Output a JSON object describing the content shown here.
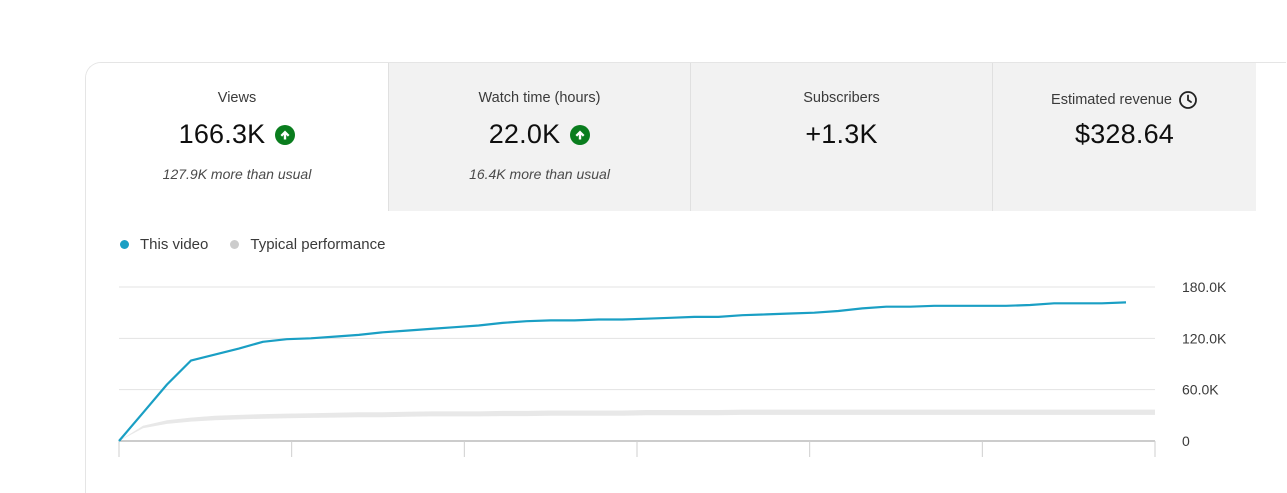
{
  "tabs": [
    {
      "label": "Views",
      "value": "166.3K",
      "sub": "127.9K more than usual",
      "trend": "up"
    },
    {
      "label": "Watch time (hours)",
      "value": "22.0K",
      "sub": "16.4K more than usual",
      "trend": "up"
    },
    {
      "label": "Subscribers",
      "value": "+1.3K",
      "sub": ""
    },
    {
      "label": "Estimated revenue",
      "value": "$328.64",
      "sub": ""
    }
  ],
  "legend": {
    "this_video": "This video",
    "typical": "Typical performance"
  },
  "icons": {
    "trend": "arrow-up-circle-icon",
    "revenue_info": "clock-icon"
  },
  "colors": {
    "this_video": "#1a9fc4",
    "typical": "#cccccc",
    "trend_up": "#0a7d1e"
  },
  "chart_data": {
    "type": "line",
    "title": "",
    "ylim": [
      0,
      180000
    ],
    "y_ticks": [
      0,
      60000,
      120000,
      180000
    ],
    "y_tick_labels": [
      "0",
      "60.0K",
      "120.0K",
      "180.0K"
    ],
    "grid": true,
    "legend_position": "top-left",
    "x_points": 43,
    "series": [
      {
        "name": "This video",
        "values": [
          0,
          33000,
          66000,
          94000,
          101000,
          108000,
          116000,
          119000,
          120000,
          122000,
          124000,
          127000,
          129000,
          131000,
          133000,
          135000,
          138000,
          140000,
          141000,
          141000,
          142000,
          142000,
          143000,
          144000,
          145000,
          145000,
          147000,
          148000,
          149000,
          150000,
          152000,
          155000,
          157000,
          157000,
          158000,
          158000,
          158000,
          158000,
          159000,
          161000,
          161000,
          161000,
          162000
        ]
      },
      {
        "name": "Typical performance",
        "values": [
          0,
          17000,
          23000,
          26000,
          28000,
          29000,
          30000,
          30500,
          31000,
          31500,
          32000,
          32000,
          32500,
          33000,
          33000,
          33000,
          33500,
          33500,
          34000,
          34000,
          34000,
          34000,
          34500,
          34500,
          34500,
          34500,
          35000,
          35000,
          35000,
          35000,
          35000,
          35000,
          35000,
          35000,
          35000,
          35000,
          35000,
          35000,
          35000,
          35000,
          35000,
          35000,
          35000
        ]
      }
    ]
  }
}
